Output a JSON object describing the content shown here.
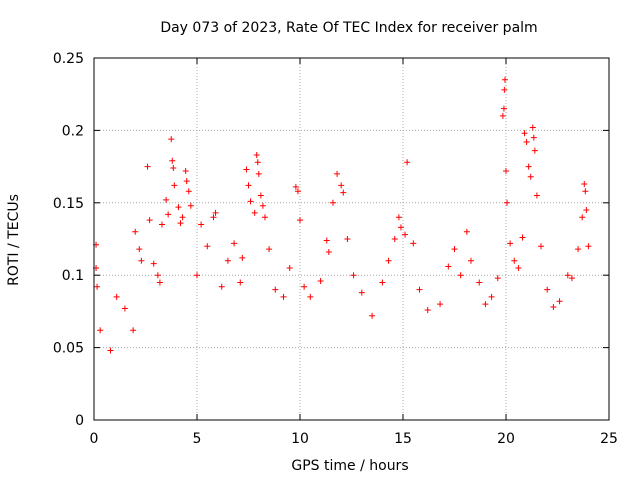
{
  "chart_data": {
    "type": "scatter",
    "title": "Day 073 of 2023, Rate Of TEC Index for receiver palm",
    "xlabel": "GPS time / hours",
    "ylabel": "ROTI / TECUs",
    "xlim": [
      0,
      25
    ],
    "ylim": [
      0,
      0.25
    ],
    "xticks": [
      0,
      5,
      10,
      15,
      20,
      25
    ],
    "xtick_labels": [
      "0",
      "5",
      "10",
      "15",
      "20",
      "25"
    ],
    "yticks": [
      0,
      0.05,
      0.1,
      0.15,
      0.2,
      0.25
    ],
    "ytick_labels": [
      "0",
      "0.05",
      "0.1",
      "0.15",
      "0.2",
      "0.25"
    ],
    "grid": true,
    "marker": "+",
    "color": "#ff0000",
    "series": [
      {
        "values": [
          [
            0.1,
            0.121
          ],
          [
            0.1,
            0.105
          ],
          [
            0.15,
            0.092
          ],
          [
            0.3,
            0.062
          ],
          [
            0.8,
            0.048
          ],
          [
            1.1,
            0.085
          ],
          [
            1.5,
            0.077
          ],
          [
            1.9,
            0.062
          ],
          [
            2.0,
            0.13
          ],
          [
            2.2,
            0.118
          ],
          [
            2.3,
            0.11
          ],
          [
            2.6,
            0.175
          ],
          [
            2.7,
            0.138
          ],
          [
            2.9,
            0.108
          ],
          [
            3.1,
            0.1
          ],
          [
            3.2,
            0.095
          ],
          [
            3.3,
            0.135
          ],
          [
            3.5,
            0.152
          ],
          [
            3.6,
            0.142
          ],
          [
            3.75,
            0.194
          ],
          [
            3.8,
            0.179
          ],
          [
            3.85,
            0.174
          ],
          [
            3.9,
            0.162
          ],
          [
            4.1,
            0.147
          ],
          [
            4.2,
            0.136
          ],
          [
            4.3,
            0.14
          ],
          [
            4.45,
            0.172
          ],
          [
            4.5,
            0.165
          ],
          [
            4.6,
            0.158
          ],
          [
            4.7,
            0.148
          ],
          [
            5.0,
            0.1
          ],
          [
            5.2,
            0.135
          ],
          [
            5.5,
            0.12
          ],
          [
            5.8,
            0.14
          ],
          [
            5.9,
            0.143
          ],
          [
            6.2,
            0.092
          ],
          [
            6.5,
            0.11
          ],
          [
            6.8,
            0.122
          ],
          [
            7.1,
            0.095
          ],
          [
            7.2,
            0.112
          ],
          [
            7.4,
            0.173
          ],
          [
            7.5,
            0.162
          ],
          [
            7.6,
            0.151
          ],
          [
            7.8,
            0.143
          ],
          [
            7.9,
            0.183
          ],
          [
            7.95,
            0.178
          ],
          [
            8.0,
            0.17
          ],
          [
            8.1,
            0.155
          ],
          [
            8.2,
            0.148
          ],
          [
            8.3,
            0.14
          ],
          [
            8.5,
            0.118
          ],
          [
            8.8,
            0.09
          ],
          [
            9.2,
            0.085
          ],
          [
            9.5,
            0.105
          ],
          [
            9.8,
            0.161
          ],
          [
            9.9,
            0.158
          ],
          [
            10.0,
            0.138
          ],
          [
            10.2,
            0.092
          ],
          [
            10.5,
            0.085
          ],
          [
            11.0,
            0.096
          ],
          [
            11.3,
            0.124
          ],
          [
            11.4,
            0.116
          ],
          [
            11.6,
            0.15
          ],
          [
            11.8,
            0.17
          ],
          [
            12.0,
            0.162
          ],
          [
            12.1,
            0.157
          ],
          [
            12.3,
            0.125
          ],
          [
            12.6,
            0.1
          ],
          [
            13.0,
            0.088
          ],
          [
            13.5,
            0.072
          ],
          [
            14.0,
            0.095
          ],
          [
            14.3,
            0.11
          ],
          [
            14.6,
            0.125
          ],
          [
            14.8,
            0.14
          ],
          [
            14.9,
            0.133
          ],
          [
            15.1,
            0.128
          ],
          [
            15.2,
            0.178
          ],
          [
            15.5,
            0.122
          ],
          [
            15.8,
            0.09
          ],
          [
            16.2,
            0.076
          ],
          [
            16.8,
            0.08
          ],
          [
            17.2,
            0.106
          ],
          [
            17.5,
            0.118
          ],
          [
            17.8,
            0.1
          ],
          [
            18.1,
            0.13
          ],
          [
            18.3,
            0.11
          ],
          [
            18.7,
            0.095
          ],
          [
            19.0,
            0.08
          ],
          [
            19.3,
            0.085
          ],
          [
            19.6,
            0.098
          ],
          [
            19.85,
            0.21
          ],
          [
            19.9,
            0.215
          ],
          [
            19.92,
            0.228
          ],
          [
            19.95,
            0.235
          ],
          [
            20.0,
            0.172
          ],
          [
            20.05,
            0.15
          ],
          [
            20.2,
            0.122
          ],
          [
            20.4,
            0.11
          ],
          [
            20.6,
            0.105
          ],
          [
            20.8,
            0.126
          ],
          [
            20.9,
            0.198
          ],
          [
            21.0,
            0.192
          ],
          [
            21.1,
            0.175
          ],
          [
            21.2,
            0.168
          ],
          [
            21.3,
            0.202
          ],
          [
            21.35,
            0.195
          ],
          [
            21.4,
            0.186
          ],
          [
            21.5,
            0.155
          ],
          [
            21.7,
            0.12
          ],
          [
            22.0,
            0.09
          ],
          [
            22.3,
            0.078
          ],
          [
            22.6,
            0.082
          ],
          [
            23.0,
            0.1
          ],
          [
            23.2,
            0.098
          ],
          [
            23.5,
            0.118
          ],
          [
            23.7,
            0.14
          ],
          [
            23.8,
            0.163
          ],
          [
            23.85,
            0.158
          ],
          [
            23.9,
            0.145
          ],
          [
            24.0,
            0.12
          ]
        ]
      }
    ]
  }
}
